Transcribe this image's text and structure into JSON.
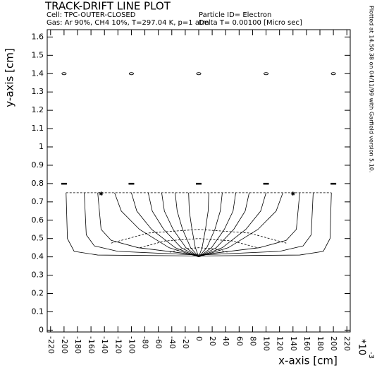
{
  "chart_data": {
    "type": "line",
    "title": "TRACK-DRIFT LINE PLOT",
    "cell": "Cell: TPC-OUTER-CLOSED",
    "gas": "Gas: Ar 90%, CH4 10%, T=297.04 K, p=1 atm",
    "particle": "Particle ID= Electron",
    "delta": "Delta T= 0.00100 [Micro sec]",
    "plotted": "Plotted at 14.50.38 on 04/11/99 with Garfield version 5.10.",
    "x_label": "x-axis [cm]",
    "x_multiplier": "*10",
    "x_exponent": "-3",
    "y_label": "y-axis [cm]",
    "color": "#000000",
    "xlim": [
      -225,
      225
    ],
    "ylim": [
      -0.01,
      1.64
    ],
    "xticks": [
      -220,
      -200,
      -180,
      -160,
      -140,
      -120,
      -100,
      -80,
      -60,
      -40,
      -20,
      0,
      20,
      40,
      60,
      80,
      100,
      120,
      140,
      160,
      180,
      200,
      220
    ],
    "yticks": [
      0,
      0.1,
      0.2,
      0.3,
      0.4,
      0.5,
      0.6,
      0.7,
      0.8,
      0.9,
      1,
      1.1,
      1.2,
      1.3,
      1.4,
      1.5,
      1.6
    ],
    "series": [
      {
        "style": "ellipse",
        "x": [
          -200,
          -100,
          0,
          100,
          200
        ],
        "values": [
          1.4,
          1.4,
          1.4,
          1.4,
          1.4
        ]
      },
      {
        "style": "dash",
        "x": [
          -200,
          -100,
          0,
          100,
          200
        ],
        "values": [
          0.8,
          0.8,
          0.8,
          0.8,
          0.8
        ]
      },
      {
        "style": "star",
        "x": [
          -145,
          140
        ],
        "values": [
          0.745,
          0.745
        ]
      },
      {
        "style": "dashed",
        "x": [
          -197,
          197
        ],
        "values": [
          0.75,
          0.75
        ]
      },
      {
        "style": "dashed",
        "x": [
          -43,
          -25,
          0,
          25,
          43
        ],
        "values": [
          0.425,
          0.443,
          0.45,
          0.443,
          0.425
        ]
      },
      {
        "style": "dashed",
        "x": [
          -87,
          -50,
          0,
          50,
          87
        ],
        "values": [
          0.45,
          0.487,
          0.5,
          0.487,
          0.45
        ]
      },
      {
        "style": "dashed",
        "x": [
          -130,
          -75,
          0,
          75,
          130
        ],
        "values": [
          0.475,
          0.53,
          0.55,
          0.53,
          0.475
        ]
      },
      {
        "style": "solid",
        "x": [
          -197,
          -195,
          -185,
          -150,
          0,
          150,
          185,
          195,
          197
        ],
        "values": [
          0.75,
          0.5,
          0.43,
          0.41,
          0.405,
          0.41,
          0.43,
          0.5,
          0.75
        ]
      },
      {
        "style": "solid",
        "x": [
          -170,
          -167,
          -155,
          -120,
          0,
          120,
          155,
          167,
          170
        ],
        "values": [
          0.75,
          0.52,
          0.46,
          0.43,
          0.41,
          0.43,
          0.46,
          0.52,
          0.75
        ]
      },
      {
        "style": "solid",
        "x": [
          -150,
          -145,
          -130,
          -90,
          0,
          90,
          130,
          145,
          150
        ],
        "values": [
          0.75,
          0.55,
          0.49,
          0.45,
          0.41,
          0.45,
          0.49,
          0.55,
          0.75
        ]
      },
      {
        "style": "solid",
        "x": [
          0,
          -44,
          -88,
          -115,
          -125
        ],
        "values": [
          0.4,
          0.45,
          0.55,
          0.65,
          0.75
        ]
      },
      {
        "style": "solid",
        "x": [
          0,
          -35,
          -70,
          -92,
          -100
        ],
        "values": [
          0.4,
          0.45,
          0.55,
          0.65,
          0.75
        ]
      },
      {
        "style": "solid",
        "x": [
          0,
          -26,
          -52,
          -69,
          -75
        ],
        "values": [
          0.4,
          0.45,
          0.55,
          0.65,
          0.75
        ]
      },
      {
        "style": "solid",
        "x": [
          0,
          -19,
          -38,
          -51,
          -55
        ],
        "values": [
          0.4,
          0.45,
          0.55,
          0.65,
          0.75
        ]
      },
      {
        "style": "solid",
        "x": [
          0,
          -12,
          -24,
          -32,
          -35
        ],
        "values": [
          0.4,
          0.45,
          0.55,
          0.65,
          0.75
        ]
      },
      {
        "style": "solid",
        "x": [
          0,
          -5,
          -10,
          -14,
          -15
        ],
        "values": [
          0.4,
          0.45,
          0.55,
          0.65,
          0.75
        ]
      },
      {
        "style": "solid",
        "x": [
          0,
          5,
          10,
          14,
          15
        ],
        "values": [
          0.4,
          0.45,
          0.55,
          0.65,
          0.75
        ]
      },
      {
        "style": "solid",
        "x": [
          0,
          12,
          24,
          32,
          35
        ],
        "values": [
          0.4,
          0.45,
          0.55,
          0.65,
          0.75
        ]
      },
      {
        "style": "solid",
        "x": [
          0,
          19,
          38,
          51,
          55
        ],
        "values": [
          0.4,
          0.45,
          0.55,
          0.65,
          0.75
        ]
      },
      {
        "style": "solid",
        "x": [
          0,
          26,
          52,
          69,
          75
        ],
        "values": [
          0.4,
          0.45,
          0.55,
          0.65,
          0.75
        ]
      },
      {
        "style": "solid",
        "x": [
          0,
          35,
          70,
          92,
          100
        ],
        "values": [
          0.4,
          0.45,
          0.55,
          0.65,
          0.75
        ]
      },
      {
        "style": "solid",
        "x": [
          0,
          44,
          88,
          115,
          125
        ],
        "values": [
          0.4,
          0.45,
          0.55,
          0.65,
          0.75
        ]
      }
    ]
  }
}
